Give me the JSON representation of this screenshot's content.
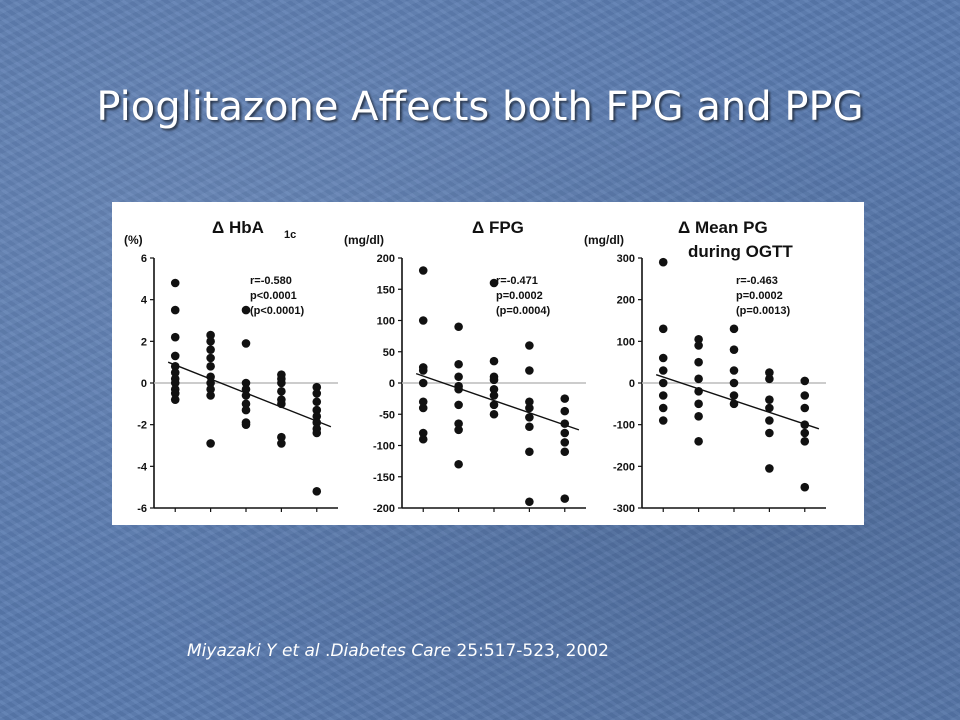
{
  "slide": {
    "title": "Pioglitazone Affects both FPG and PPG",
    "citation": {
      "authors": "Miyazaki Y et al",
      "separator": " .",
      "journal": "Diabetes Care",
      "details": " 25:517-523, 2002"
    }
  },
  "chart_data": [
    {
      "type": "scatter",
      "title": "Δ HbA",
      "title_sub": "1c",
      "ylabel": "(%)",
      "ylim": [
        -6,
        6
      ],
      "yticks": [
        6,
        4,
        2,
        0,
        -2,
        -4,
        -6
      ],
      "stats": [
        "r=-0.580",
        "p<0.0001",
        "(p<0.0001)"
      ],
      "groups": [
        {
          "x": 1,
          "y": [
            4.8,
            3.5,
            2.2,
            1.3,
            0.8,
            0.5,
            0.2,
            0.0,
            -0.3,
            -0.5,
            -0.8
          ]
        },
        {
          "x": 2,
          "y": [
            2.3,
            2.0,
            1.6,
            1.2,
            0.8,
            0.3,
            0.0,
            -0.3,
            -0.6,
            -2.9
          ]
        },
        {
          "x": 3,
          "y": [
            3.5,
            1.9,
            0.0,
            -0.3,
            -0.6,
            -1.0,
            -1.3,
            -1.9,
            -2.0
          ]
        },
        {
          "x": 4,
          "y": [
            0.4,
            0.2,
            0.0,
            -0.4,
            -0.8,
            -1.0,
            -2.6,
            -2.9
          ]
        },
        {
          "x": 5,
          "y": [
            -0.2,
            -0.5,
            -0.9,
            -1.3,
            -1.6,
            -1.9,
            -2.2,
            -2.4,
            -5.2
          ]
        }
      ],
      "trend": {
        "from": [
          0.8,
          1.0
        ],
        "to": [
          5.4,
          -2.1
        ]
      }
    },
    {
      "type": "scatter",
      "title": "Δ FPG",
      "ylabel": "(mg/dl)",
      "ylim": [
        -200,
        200
      ],
      "yticks": [
        200,
        150,
        100,
        50,
        0,
        -50,
        -100,
        -150,
        -200
      ],
      "stats": [
        "r=-0.471",
        "p=0.0002",
        "(p=0.0004)"
      ],
      "groups": [
        {
          "x": 1,
          "y": [
            180,
            100,
            25,
            20,
            0,
            -30,
            -40,
            -80,
            -90
          ]
        },
        {
          "x": 2,
          "y": [
            90,
            30,
            10,
            -5,
            -10,
            -35,
            -65,
            -75,
            -130
          ]
        },
        {
          "x": 3,
          "y": [
            160,
            35,
            10,
            5,
            -10,
            -20,
            -35,
            -50
          ]
        },
        {
          "x": 4,
          "y": [
            60,
            20,
            -30,
            -40,
            -55,
            -70,
            -110,
            -190
          ]
        },
        {
          "x": 5,
          "y": [
            -25,
            -45,
            -65,
            -80,
            -95,
            -110,
            -185
          ]
        }
      ],
      "trend": {
        "from": [
          0.8,
          15
        ],
        "to": [
          5.4,
          -75
        ]
      }
    },
    {
      "type": "scatter",
      "title": "Δ Mean PG",
      "title_line2": "during OGTT",
      "ylabel": "(mg/dl)",
      "ylim": [
        -300,
        300
      ],
      "yticks": [
        300,
        200,
        100,
        0,
        -100,
        -200,
        -300
      ],
      "stats": [
        "r=-0.463",
        "p=0.0002",
        "(p=0.0013)"
      ],
      "groups": [
        {
          "x": 1,
          "y": [
            290,
            130,
            60,
            30,
            0,
            -30,
            -60,
            -90
          ]
        },
        {
          "x": 2,
          "y": [
            105,
            90,
            50,
            10,
            -20,
            -50,
            -80,
            -140
          ]
        },
        {
          "x": 3,
          "y": [
            130,
            80,
            30,
            0,
            -30,
            -50
          ]
        },
        {
          "x": 4,
          "y": [
            25,
            10,
            -40,
            -60,
            -90,
            -120,
            -205
          ]
        },
        {
          "x": 5,
          "y": [
            5,
            -30,
            -60,
            -100,
            -120,
            -140,
            -250
          ]
        }
      ],
      "trend": {
        "from": [
          0.8,
          20
        ],
        "to": [
          5.4,
          -110
        ]
      }
    }
  ]
}
